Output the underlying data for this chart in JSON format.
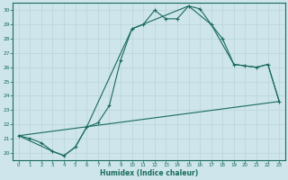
{
  "xlabel": "Humidex (Indice chaleur)",
  "bg_color": "#cde5eb",
  "line_color": "#1a6b5a",
  "grid_color": "#b8d5db",
  "xlim": [
    -0.5,
    23.5
  ],
  "ylim": [
    19.5,
    30.5
  ],
  "yticks": [
    20,
    21,
    22,
    23,
    24,
    25,
    26,
    27,
    28,
    29,
    30
  ],
  "xticks": [
    0,
    1,
    2,
    3,
    4,
    5,
    6,
    7,
    8,
    9,
    10,
    11,
    12,
    13,
    14,
    15,
    16,
    17,
    18,
    19,
    20,
    21,
    22,
    23
  ],
  "line1_x": [
    0,
    1,
    2,
    3,
    4,
    5,
    6,
    7,
    8,
    9,
    10,
    11,
    12,
    13,
    14,
    15,
    16,
    17,
    18,
    19,
    20,
    21,
    22,
    23
  ],
  "line1_y": [
    21.2,
    21.0,
    20.7,
    20.1,
    19.8,
    20.4,
    21.8,
    22.1,
    23.3,
    26.5,
    28.7,
    29.0,
    30.0,
    29.4,
    29.4,
    30.3,
    30.1,
    29.0,
    28.0,
    26.2,
    26.1,
    26.0,
    26.2,
    23.6
  ],
  "line2_x": [
    0,
    3,
    4,
    5,
    6,
    10,
    15,
    17,
    19,
    20,
    21,
    22,
    23
  ],
  "line2_y": [
    21.2,
    20.1,
    19.8,
    20.4,
    21.8,
    28.7,
    30.3,
    29.0,
    26.2,
    26.1,
    26.0,
    26.2,
    23.6
  ],
  "line3_x": [
    0,
    23
  ],
  "line3_y": [
    21.2,
    23.6
  ]
}
